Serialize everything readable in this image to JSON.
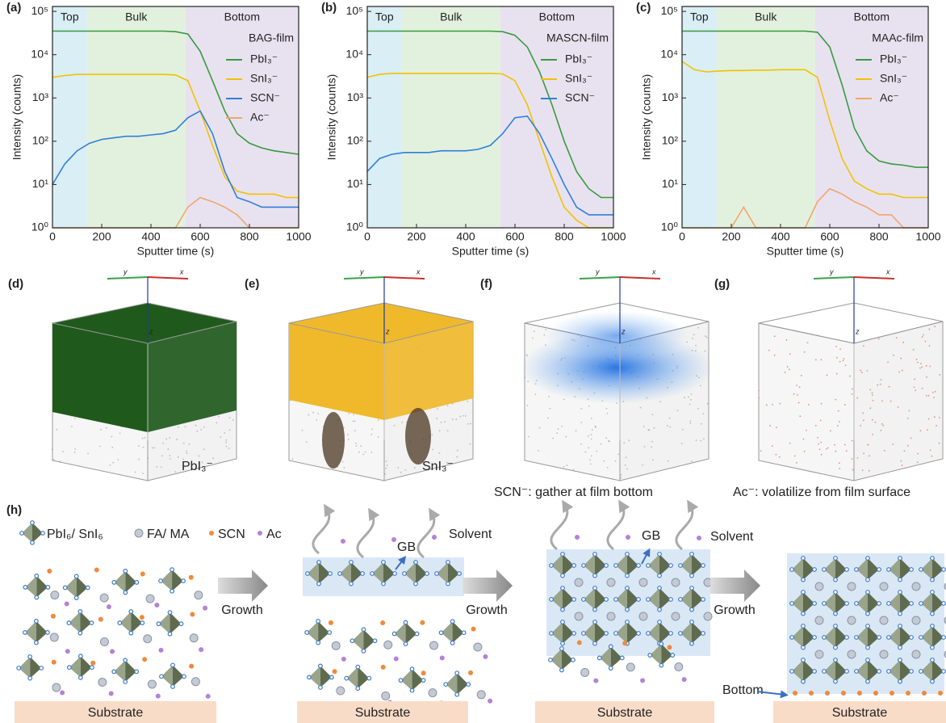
{
  "chart_data": [
    {
      "type": "line",
      "panel": "(a)",
      "legend_title": "BAG-film",
      "x_label": "Sputter time (s)",
      "y_label": "Intensity (counts)",
      "log_y": true,
      "legend": "upper right",
      "xlim": [
        0,
        1000
      ],
      "xticks": [
        0,
        200,
        400,
        600,
        800,
        1000
      ],
      "ylim": [
        1,
        130000
      ],
      "yticks": [
        {
          "value": 1,
          "label": "10⁰"
        },
        {
          "value": 10,
          "label": "10¹"
        },
        {
          "value": 100,
          "label": "10²"
        },
        {
          "value": 1000,
          "label": "10³"
        },
        {
          "value": 10000,
          "label": "10⁴"
        },
        {
          "value": 100000,
          "label": "10⁵"
        }
      ],
      "regions": [
        {
          "label": "Top",
          "start": 0,
          "end": 140,
          "color": "#d9eef5"
        },
        {
          "label": "Bulk",
          "start": 140,
          "end": 540,
          "color": "#e2f1de"
        },
        {
          "label": "Bottom",
          "start": 540,
          "end": 1000,
          "color": "#e8e2f0"
        }
      ],
      "x": [
        0,
        50,
        100,
        150,
        200,
        250,
        300,
        350,
        400,
        450,
        500,
        550,
        600,
        650,
        700,
        750,
        800,
        850,
        900,
        950,
        1000
      ],
      "series": [
        {
          "name": "PbI₃⁻",
          "color": "#3a9a3f",
          "values": [
            35000,
            35000,
            35000,
            35000,
            35000,
            35000,
            35000,
            35000,
            35000,
            35000,
            34000,
            30000,
            12000,
            2500,
            500,
            150,
            90,
            70,
            60,
            55,
            50
          ]
        },
        {
          "name": "SnI₃⁻",
          "color": "#f2c200",
          "values": [
            3000,
            3300,
            3500,
            3500,
            3500,
            3500,
            3500,
            3500,
            3500,
            3500,
            3400,
            2500,
            500,
            80,
            15,
            7,
            6,
            6,
            6,
            5,
            5
          ]
        },
        {
          "name": "SCN⁻",
          "color": "#2f7fdc",
          "values": [
            10,
            30,
            60,
            90,
            110,
            120,
            130,
            130,
            140,
            150,
            180,
            350,
            500,
            150,
            20,
            5,
            4,
            3,
            3,
            3,
            3
          ]
        },
        {
          "name": "Ac⁻",
          "color": "#f4a46a",
          "values": [
            1,
            1,
            1,
            1,
            1,
            1,
            1,
            1,
            1,
            1,
            1,
            3,
            5,
            4,
            3,
            2,
            1,
            1,
            1,
            1,
            1
          ]
        }
      ]
    },
    {
      "type": "line",
      "panel": "(b)",
      "legend_title": "MASCN-film",
      "x_label": "Sputter time (s)",
      "y_label": "Intensity (counts)",
      "log_y": true,
      "legend": "upper right",
      "xlim": [
        0,
        1000
      ],
      "xticks": [
        0,
        200,
        400,
        600,
        800,
        1000
      ],
      "ylim": [
        1,
        130000
      ],
      "yticks": [
        {
          "value": 1,
          "label": "10⁰"
        },
        {
          "value": 10,
          "label": "10¹"
        },
        {
          "value": 100,
          "label": "10²"
        },
        {
          "value": 1000,
          "label": "10³"
        },
        {
          "value": 10000,
          "label": "10⁴"
        },
        {
          "value": 100000,
          "label": "10⁵"
        }
      ],
      "regions": [
        {
          "label": "Top",
          "start": 0,
          "end": 140,
          "color": "#d9eef5"
        },
        {
          "label": "Bulk",
          "start": 140,
          "end": 540,
          "color": "#e2f1de"
        },
        {
          "label": "Bottom",
          "start": 540,
          "end": 1000,
          "color": "#e8e2f0"
        }
      ],
      "x": [
        0,
        50,
        100,
        150,
        200,
        250,
        300,
        350,
        400,
        450,
        500,
        550,
        600,
        650,
        700,
        750,
        800,
        850,
        900,
        950,
        1000
      ],
      "series": [
        {
          "name": "PbI₃⁻",
          "color": "#3a9a3f",
          "values": [
            35000,
            35000,
            35000,
            35000,
            35000,
            35000,
            35000,
            35000,
            35000,
            35000,
            35000,
            34000,
            28000,
            15000,
            4000,
            700,
            100,
            20,
            8,
            5,
            5
          ]
        },
        {
          "name": "SnI₃⁻",
          "color": "#f2c200",
          "values": [
            3000,
            3500,
            3700,
            3700,
            3700,
            3700,
            3700,
            3700,
            3700,
            3700,
            3700,
            3600,
            2500,
            700,
            100,
            15,
            3,
            1.5,
            1,
            1,
            1
          ]
        },
        {
          "name": "SCN⁻",
          "color": "#2f7fdc",
          "values": [
            20,
            40,
            50,
            55,
            55,
            55,
            60,
            60,
            60,
            65,
            80,
            150,
            350,
            380,
            150,
            40,
            10,
            3,
            2,
            2,
            2
          ]
        }
      ]
    },
    {
      "type": "line",
      "panel": "(c)",
      "legend_title": "MAAc-film",
      "x_label": "Sputter time (s)",
      "y_label": "Intensity (counts)",
      "log_y": true,
      "legend": "upper right",
      "xlim": [
        0,
        1000
      ],
      "xticks": [
        0,
        200,
        400,
        600,
        800,
        1000
      ],
      "ylim": [
        1,
        130000
      ],
      "yticks": [
        {
          "value": 1,
          "label": "10⁰"
        },
        {
          "value": 10,
          "label": "10¹"
        },
        {
          "value": 100,
          "label": "10²"
        },
        {
          "value": 1000,
          "label": "10³"
        },
        {
          "value": 10000,
          "label": "10⁴"
        },
        {
          "value": 100000,
          "label": "10⁵"
        }
      ],
      "regions": [
        {
          "label": "Top",
          "start": 0,
          "end": 140,
          "color": "#d9eef5"
        },
        {
          "label": "Bulk",
          "start": 140,
          "end": 540,
          "color": "#e2f1de"
        },
        {
          "label": "Bottom",
          "start": 540,
          "end": 1000,
          "color": "#e8e2f0"
        }
      ],
      "x": [
        0,
        50,
        100,
        150,
        200,
        250,
        300,
        350,
        400,
        450,
        500,
        550,
        600,
        650,
        700,
        750,
        800,
        850,
        900,
        950,
        1000
      ],
      "series": [
        {
          "name": "PbI₃⁻",
          "color": "#3a9a3f",
          "values": [
            35000,
            35000,
            35000,
            35000,
            35000,
            35000,
            35000,
            35000,
            35000,
            35000,
            35000,
            33000,
            15000,
            2000,
            200,
            60,
            35,
            30,
            28,
            25,
            25
          ]
        },
        {
          "name": "SnI₃⁻",
          "color": "#f2c200",
          "values": [
            7000,
            4500,
            4000,
            4200,
            4300,
            4300,
            4400,
            4400,
            4500,
            4500,
            4500,
            3000,
            300,
            40,
            12,
            8,
            6,
            6,
            5,
            5,
            5
          ]
        },
        {
          "name": "Ac⁻",
          "color": "#f4a46a",
          "values": [
            1,
            1,
            1,
            1,
            1,
            3,
            1,
            1,
            1,
            1,
            1,
            4,
            8,
            6,
            4,
            3,
            2,
            2,
            1,
            1,
            1
          ]
        }
      ]
    }
  ],
  "cube_axes": [
    "y",
    "x",
    "z"
  ],
  "cubes": [
    {
      "panel": "(d)",
      "caption": "PbI₃⁻"
    },
    {
      "panel": "(e)",
      "caption": "SnI₃⁻"
    },
    {
      "panel": "(f)",
      "caption": "SCN⁻: gather at film bottom"
    },
    {
      "panel": "(g)",
      "caption": "Ac⁻: volatilize from film surface"
    }
  ],
  "schematic": {
    "panel": "(h)",
    "legend": [
      "PbI₆/ SnI₆",
      "FA/ MA",
      "SCN",
      "Ac"
    ],
    "arrow_label": "Growth",
    "boundary": "GB",
    "solvent": "Solvent",
    "substrate": "Substrate",
    "bottom": "Bottom"
  }
}
